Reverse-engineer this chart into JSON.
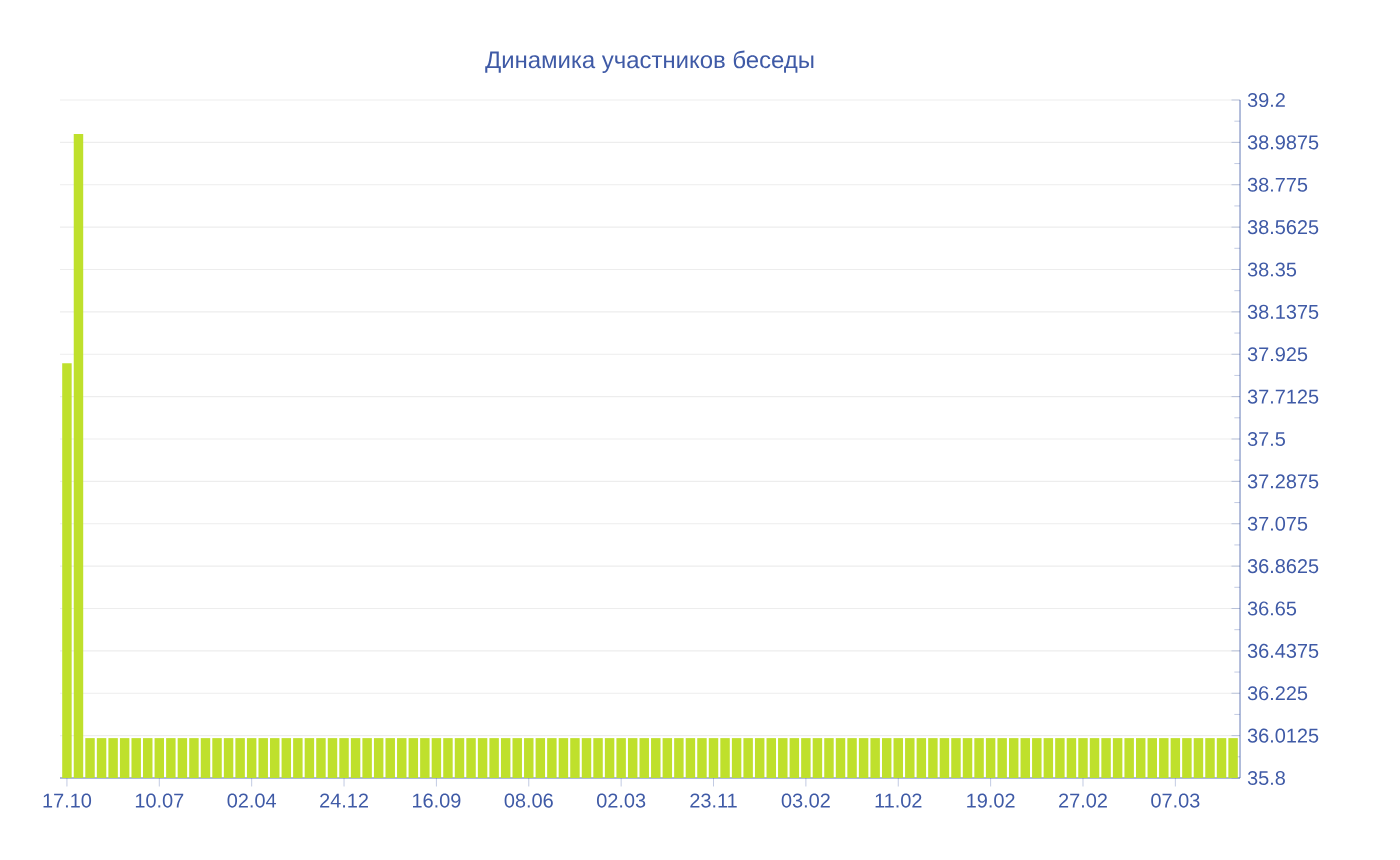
{
  "chart_data": {
    "type": "bar",
    "title": "Динамика участников беседы",
    "categories": [
      "17.10",
      null,
      null,
      null,
      null,
      null,
      null,
      null,
      "10.07",
      null,
      null,
      null,
      null,
      null,
      null,
      null,
      "02.04",
      null,
      null,
      null,
      null,
      null,
      null,
      null,
      "24.12",
      null,
      null,
      null,
      null,
      null,
      null,
      null,
      "16.09",
      null,
      null,
      null,
      null,
      null,
      null,
      null,
      "08.06",
      null,
      null,
      null,
      null,
      null,
      null,
      null,
      "02.03",
      null,
      null,
      null,
      null,
      null,
      null,
      null,
      "23.11",
      null,
      null,
      null,
      null,
      null,
      null,
      null,
      "03.02",
      null,
      null,
      null,
      null,
      null,
      null,
      null,
      "11.02",
      null,
      null,
      null,
      null,
      null,
      null,
      null,
      "19.02",
      null,
      null,
      null,
      null,
      null,
      null,
      null,
      "27.02",
      null,
      null,
      null,
      null,
      null,
      null,
      null,
      "07.03",
      null,
      null,
      null,
      null,
      null
    ],
    "values": [
      37.88,
      39.03,
      36.0,
      36.0,
      36.0,
      36.0,
      36.0,
      36.0,
      36.0,
      36.0,
      36.0,
      36.0,
      36.0,
      36.0,
      36.0,
      36.0,
      36.0,
      36.0,
      36.0,
      36.0,
      36.0,
      36.0,
      36.0,
      36.0,
      36.0,
      36.0,
      36.0,
      36.0,
      36.0,
      36.0,
      36.0,
      36.0,
      36.0,
      36.0,
      36.0,
      36.0,
      36.0,
      36.0,
      36.0,
      36.0,
      36.0,
      36.0,
      36.0,
      36.0,
      36.0,
      36.0,
      36.0,
      36.0,
      36.0,
      36.0,
      36.0,
      36.0,
      36.0,
      36.0,
      36.0,
      36.0,
      36.0,
      36.0,
      36.0,
      36.0,
      36.0,
      36.0,
      36.0,
      36.0,
      36.0,
      36.0,
      36.0,
      36.0,
      36.0,
      36.0,
      36.0,
      36.0,
      36.0,
      36.0,
      36.0,
      36.0,
      36.0,
      36.0,
      36.0,
      36.0,
      36.0,
      36.0,
      36.0,
      36.0,
      36.0,
      36.0,
      36.0,
      36.0,
      36.0,
      36.0,
      36.0,
      36.0,
      36.0,
      36.0,
      36.0,
      36.0,
      36.0,
      36.0,
      36.0,
      36.0,
      36.0,
      36.0
    ],
    "color": "#bfe02c",
    "ylim": [
      35.8,
      39.2
    ],
    "yticks": [
      35.8,
      36.0125,
      36.225,
      36.4375,
      36.65,
      36.8625,
      37.075,
      37.2875,
      37.5,
      37.7125,
      37.925,
      38.1375,
      38.35,
      38.5625,
      38.775,
      38.9875,
      39.2
    ],
    "grid": "y"
  }
}
